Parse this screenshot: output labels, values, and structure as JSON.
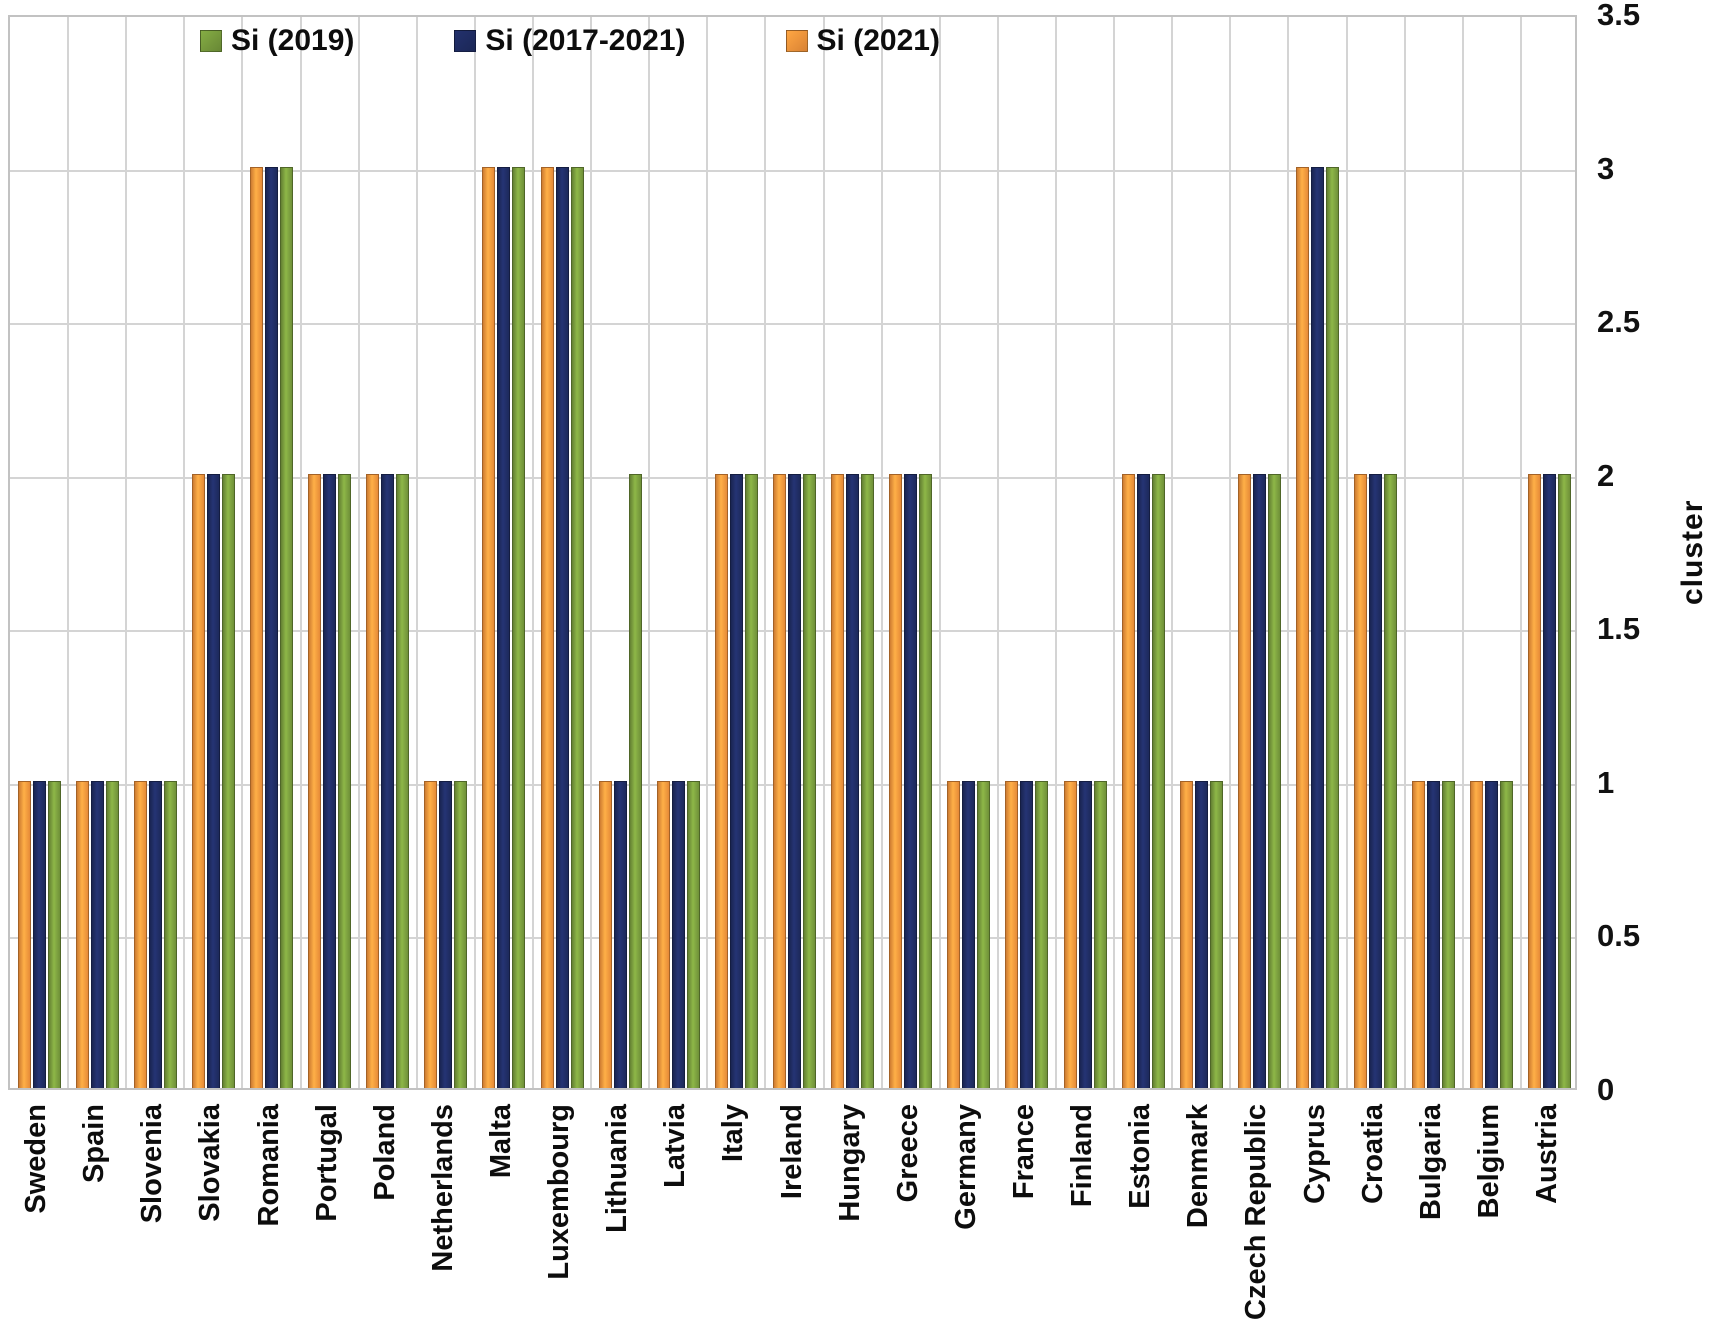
{
  "figure": {
    "background": "#ffffff"
  },
  "legend": {
    "items": [
      {
        "name": "Si (2019)",
        "color": "#74963B"
      },
      {
        "name": "Si (2017-2021)",
        "color": "#1E2B5F"
      },
      {
        "name": "Si (2021)",
        "color": "#F0903A"
      }
    ]
  },
  "y_axis": {
    "title": "cluster",
    "ticks": [
      "3.5",
      "3",
      "2.5",
      "2",
      "1.5",
      "1",
      "0.5",
      "0"
    ],
    "min": 0,
    "max": 3.5,
    "step": 0.5
  },
  "chart_data": {
    "type": "bar",
    "title": "",
    "xlabel": "",
    "ylabel": "cluster",
    "ylim": [
      0,
      3.5
    ],
    "grid": true,
    "legend_position": "top-inside",
    "categories": [
      "Sweden",
      "Spain",
      "Slovenia",
      "Slovakia",
      "Romania",
      "Portugal",
      "Poland",
      "Netherlands",
      "Malta",
      "Luxembourg",
      "Lithuania",
      "Latvia",
      "Italy",
      "Ireland",
      "Hungary",
      "Greece",
      "Germany",
      "France",
      "Finland",
      "Estonia",
      "Denmark",
      "Czech Republic",
      "Cyprus",
      "Croatia",
      "Bulgaria",
      "Belgium",
      "Austria"
    ],
    "series": [
      {
        "name": "Si (2021)",
        "color": "#F0903A",
        "values": [
          1,
          1,
          1,
          2,
          3,
          2,
          2,
          1,
          3,
          3,
          1,
          1,
          2,
          2,
          2,
          2,
          1,
          1,
          1,
          2,
          1,
          2,
          3,
          2,
          1,
          1,
          2
        ]
      },
      {
        "name": "Si (2017-2021)",
        "color": "#1E2B5F",
        "values": [
          1,
          1,
          1,
          2,
          3,
          2,
          2,
          1,
          3,
          3,
          1,
          1,
          2,
          2,
          2,
          2,
          1,
          1,
          1,
          2,
          1,
          2,
          3,
          2,
          1,
          1,
          2
        ]
      },
      {
        "name": "Si (2019)",
        "color": "#74963B",
        "values": [
          1,
          1,
          1,
          2,
          3,
          2,
          2,
          1,
          3,
          3,
          2,
          1,
          2,
          2,
          2,
          2,
          1,
          1,
          1,
          2,
          1,
          2,
          3,
          2,
          1,
          1,
          2
        ]
      }
    ]
  }
}
